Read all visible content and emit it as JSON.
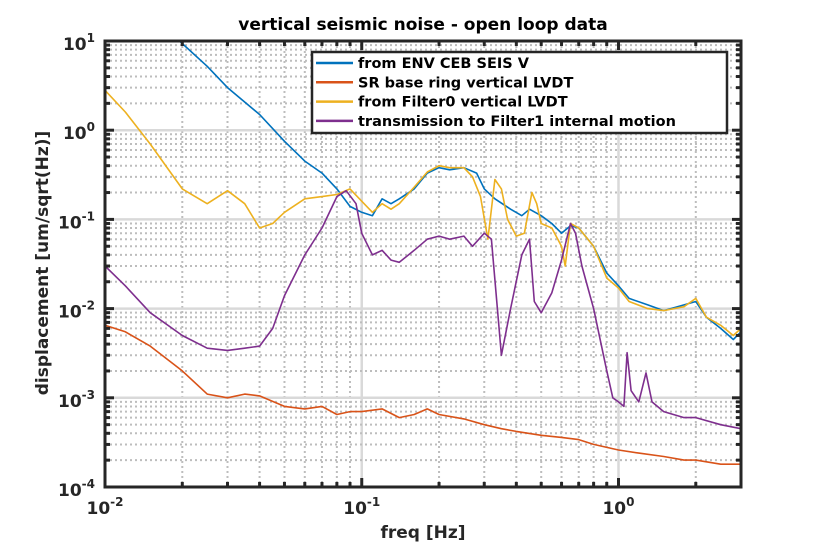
{
  "chart_data": {
    "type": "line",
    "title": "vertical seismic noise - open loop data",
    "xlabel": "freq [Hz]",
    "ylabel": "displacement [um/sqrt(Hz)]",
    "xscale": "log",
    "yscale": "log",
    "xlim": [
      0.01,
      3
    ],
    "ylim": [
      0.0001,
      10
    ],
    "grid": "major and minor",
    "legend_position": "top-right",
    "x_ticks": [
      {
        "base": "10",
        "exp": "-2",
        "value": 0.01
      },
      {
        "base": "10",
        "exp": "-1",
        "value": 0.1
      },
      {
        "base": "10",
        "exp": "0",
        "value": 1
      }
    ],
    "y_ticks": [
      {
        "base": "10",
        "exp": "1",
        "value": 10
      },
      {
        "base": "10",
        "exp": "0",
        "value": 1
      },
      {
        "base": "10",
        "exp": "-1",
        "value": 0.1
      },
      {
        "base": "10",
        "exp": "-2",
        "value": 0.01
      },
      {
        "base": "10",
        "exp": "-3",
        "value": 0.001
      },
      {
        "base": "10",
        "exp": "-4",
        "value": 0.0001
      }
    ],
    "series": [
      {
        "name": "from ENV CEB SEIS V",
        "color": "#0072bd",
        "points": [
          [
            0.0195,
            10
          ],
          [
            0.025,
            5.2
          ],
          [
            0.03,
            3.0
          ],
          [
            0.04,
            1.5
          ],
          [
            0.05,
            0.75
          ],
          [
            0.06,
            0.45
          ],
          [
            0.07,
            0.33
          ],
          [
            0.08,
            0.22
          ],
          [
            0.09,
            0.14
          ],
          [
            0.1,
            0.12
          ],
          [
            0.11,
            0.11
          ],
          [
            0.12,
            0.17
          ],
          [
            0.13,
            0.15
          ],
          [
            0.14,
            0.17
          ],
          [
            0.16,
            0.22
          ],
          [
            0.18,
            0.33
          ],
          [
            0.2,
            0.38
          ],
          [
            0.22,
            0.36
          ],
          [
            0.25,
            0.38
          ],
          [
            0.28,
            0.33
          ],
          [
            0.3,
            0.22
          ],
          [
            0.33,
            0.17
          ],
          [
            0.38,
            0.13
          ],
          [
            0.42,
            0.11
          ],
          [
            0.45,
            0.13
          ],
          [
            0.5,
            0.11
          ],
          [
            0.55,
            0.09
          ],
          [
            0.6,
            0.07
          ],
          [
            0.65,
            0.085
          ],
          [
            0.7,
            0.08
          ],
          [
            0.8,
            0.05
          ],
          [
            0.9,
            0.025
          ],
          [
            1.0,
            0.018
          ],
          [
            1.1,
            0.013
          ],
          [
            1.3,
            0.011
          ],
          [
            1.5,
            0.0095
          ],
          [
            1.8,
            0.011
          ],
          [
            2.0,
            0.012
          ],
          [
            2.2,
            0.008
          ],
          [
            2.5,
            0.006
          ],
          [
            2.8,
            0.0045
          ],
          [
            3.0,
            0.0055
          ]
        ]
      },
      {
        "name": "SR base ring vertical LVDT",
        "color": "#d95319",
        "points": [
          [
            0.01,
            0.0065
          ],
          [
            0.012,
            0.0055
          ],
          [
            0.015,
            0.0038
          ],
          [
            0.02,
            0.002
          ],
          [
            0.025,
            0.0011
          ],
          [
            0.03,
            0.001
          ],
          [
            0.035,
            0.0011
          ],
          [
            0.04,
            0.00105
          ],
          [
            0.05,
            0.0008
          ],
          [
            0.06,
            0.00075
          ],
          [
            0.07,
            0.0008
          ],
          [
            0.08,
            0.00065
          ],
          [
            0.09,
            0.0007
          ],
          [
            0.1,
            0.0007
          ],
          [
            0.12,
            0.00075
          ],
          [
            0.14,
            0.0006
          ],
          [
            0.16,
            0.00065
          ],
          [
            0.18,
            0.00075
          ],
          [
            0.2,
            0.00065
          ],
          [
            0.25,
            0.00058
          ],
          [
            0.3,
            0.0005
          ],
          [
            0.35,
            0.00045
          ],
          [
            0.4,
            0.00042
          ],
          [
            0.5,
            0.00038
          ],
          [
            0.6,
            0.00036
          ],
          [
            0.7,
            0.00034
          ],
          [
            0.8,
            0.0003
          ],
          [
            1.0,
            0.00026
          ],
          [
            1.2,
            0.00024
          ],
          [
            1.5,
            0.00022
          ],
          [
            1.8,
            0.0002
          ],
          [
            2.0,
            0.0002
          ],
          [
            2.5,
            0.00018
          ],
          [
            3.0,
            0.00018
          ]
        ]
      },
      {
        "name": "from Filter0 vertical LVDT",
        "color": "#edb120",
        "points": [
          [
            0.01,
            2.8
          ],
          [
            0.012,
            1.6
          ],
          [
            0.015,
            0.7
          ],
          [
            0.02,
            0.22
          ],
          [
            0.025,
            0.15
          ],
          [
            0.03,
            0.21
          ],
          [
            0.035,
            0.15
          ],
          [
            0.04,
            0.08
          ],
          [
            0.045,
            0.09
          ],
          [
            0.05,
            0.12
          ],
          [
            0.06,
            0.17
          ],
          [
            0.07,
            0.18
          ],
          [
            0.08,
            0.19
          ],
          [
            0.09,
            0.22
          ],
          [
            0.1,
            0.16
          ],
          [
            0.11,
            0.12
          ],
          [
            0.12,
            0.15
          ],
          [
            0.13,
            0.13
          ],
          [
            0.14,
            0.15
          ],
          [
            0.16,
            0.23
          ],
          [
            0.18,
            0.34
          ],
          [
            0.2,
            0.4
          ],
          [
            0.22,
            0.38
          ],
          [
            0.25,
            0.38
          ],
          [
            0.27,
            0.3
          ],
          [
            0.29,
            0.18
          ],
          [
            0.31,
            0.06
          ],
          [
            0.33,
            0.28
          ],
          [
            0.35,
            0.22
          ],
          [
            0.37,
            0.1
          ],
          [
            0.4,
            0.065
          ],
          [
            0.43,
            0.07
          ],
          [
            0.46,
            0.2
          ],
          [
            0.48,
            0.15
          ],
          [
            0.5,
            0.09
          ],
          [
            0.55,
            0.08
          ],
          [
            0.6,
            0.05
          ],
          [
            0.62,
            0.03
          ],
          [
            0.65,
            0.09
          ],
          [
            0.7,
            0.08
          ],
          [
            0.8,
            0.05
          ],
          [
            0.9,
            0.022
          ],
          [
            1.0,
            0.017
          ],
          [
            1.1,
            0.012
          ],
          [
            1.3,
            0.01
          ],
          [
            1.5,
            0.0095
          ],
          [
            1.8,
            0.0105
          ],
          [
            2.0,
            0.013
          ],
          [
            2.2,
            0.008
          ],
          [
            2.5,
            0.0065
          ],
          [
            2.8,
            0.005
          ],
          [
            3.0,
            0.006
          ]
        ]
      },
      {
        "name": "transmission to Filter1 internal motion",
        "color": "#7e2f8e",
        "points": [
          [
            0.01,
            0.03
          ],
          [
            0.012,
            0.018
          ],
          [
            0.015,
            0.009
          ],
          [
            0.02,
            0.005
          ],
          [
            0.025,
            0.0036
          ],
          [
            0.03,
            0.0034
          ],
          [
            0.035,
            0.0036
          ],
          [
            0.04,
            0.0038
          ],
          [
            0.045,
            0.006
          ],
          [
            0.05,
            0.014
          ],
          [
            0.06,
            0.04
          ],
          [
            0.07,
            0.08
          ],
          [
            0.08,
            0.18
          ],
          [
            0.087,
            0.21
          ],
          [
            0.095,
            0.15
          ],
          [
            0.1,
            0.07
          ],
          [
            0.11,
            0.04
          ],
          [
            0.12,
            0.045
          ],
          [
            0.13,
            0.035
          ],
          [
            0.14,
            0.033
          ],
          [
            0.16,
            0.045
          ],
          [
            0.18,
            0.06
          ],
          [
            0.2,
            0.065
          ],
          [
            0.22,
            0.06
          ],
          [
            0.25,
            0.065
          ],
          [
            0.27,
            0.05
          ],
          [
            0.3,
            0.07
          ],
          [
            0.32,
            0.06
          ],
          [
            0.35,
            0.003
          ],
          [
            0.38,
            0.01
          ],
          [
            0.42,
            0.04
          ],
          [
            0.45,
            0.06
          ],
          [
            0.47,
            0.012
          ],
          [
            0.5,
            0.009
          ],
          [
            0.55,
            0.015
          ],
          [
            0.6,
            0.035
          ],
          [
            0.65,
            0.09
          ],
          [
            0.68,
            0.07
          ],
          [
            0.72,
            0.03
          ],
          [
            0.8,
            0.01
          ],
          [
            0.9,
            0.002
          ],
          [
            0.95,
            0.001
          ],
          [
            1.0,
            0.0009
          ],
          [
            1.05,
            0.0008
          ],
          [
            1.08,
            0.0032
          ],
          [
            1.12,
            0.0012
          ],
          [
            1.2,
            0.0009
          ],
          [
            1.28,
            0.0019
          ],
          [
            1.35,
            0.0009
          ],
          [
            1.5,
            0.0007
          ],
          [
            1.8,
            0.0006
          ],
          [
            2.0,
            0.0006
          ],
          [
            2.5,
            0.0005
          ],
          [
            3.0,
            0.00045
          ]
        ]
      }
    ]
  }
}
